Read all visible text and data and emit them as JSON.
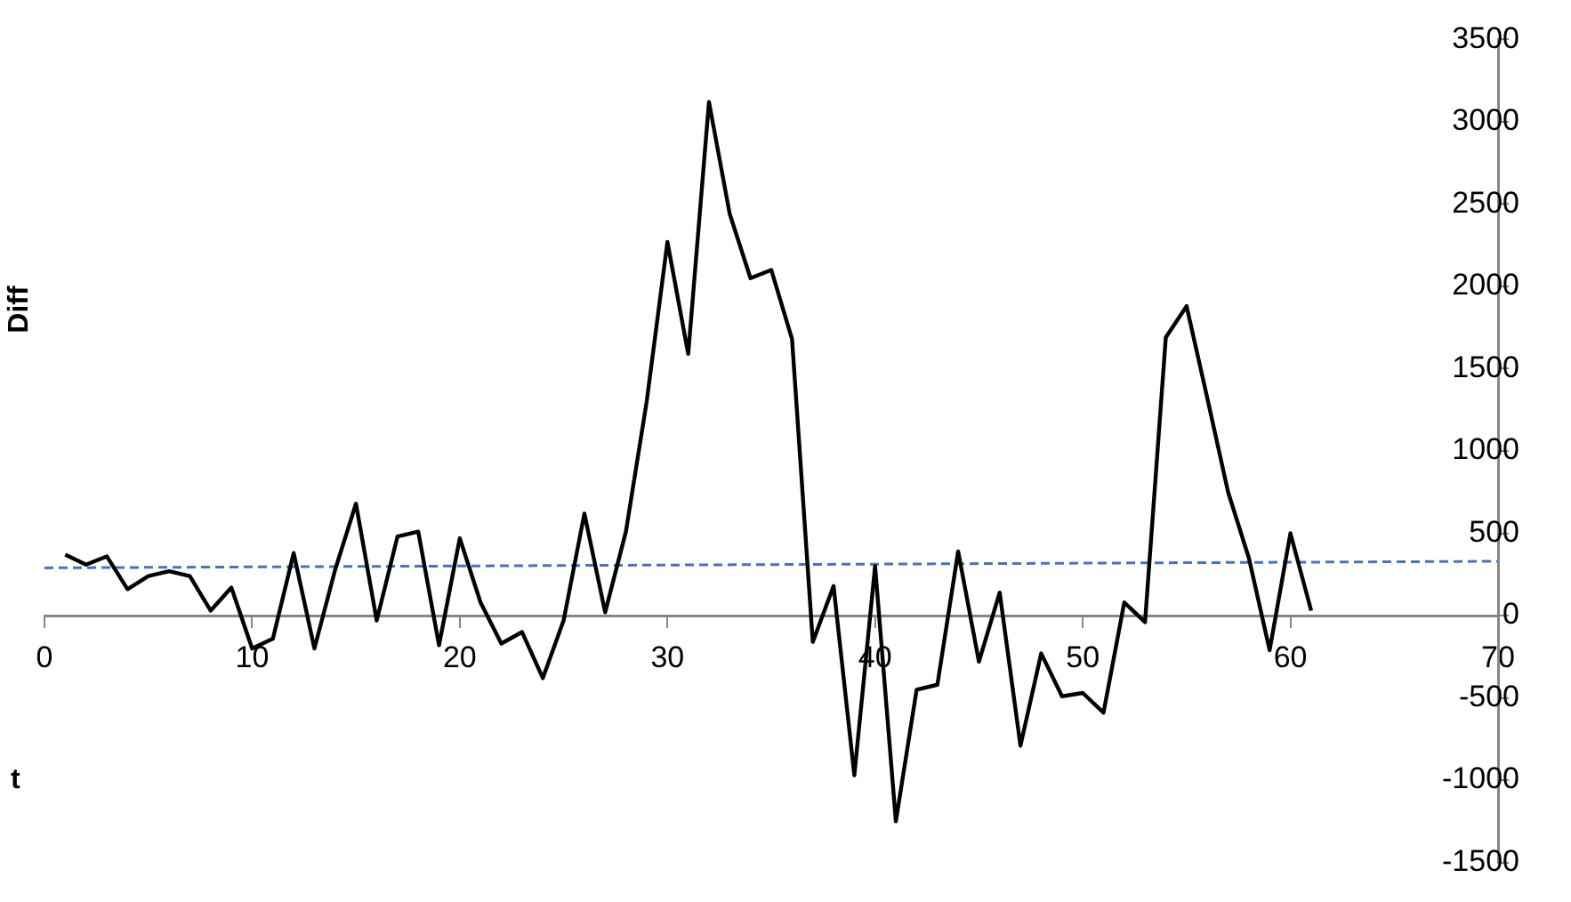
{
  "chart_data": {
    "type": "line",
    "xlabel": "t",
    "ylabel": "Diff",
    "xlim": [
      0,
      70
    ],
    "xticks": [
      0,
      10,
      20,
      30,
      40,
      50,
      60,
      70
    ],
    "ylim": [
      -1500,
      3500
    ],
    "yticks": [
      -1500,
      -1000,
      -500,
      0,
      500,
      1000,
      1500,
      2000,
      2500,
      3000,
      3500
    ],
    "grid": false,
    "legend": false,
    "marker": "none",
    "series": [
      {
        "color": "#000000",
        "line_style": "solid",
        "x": [
          1,
          2,
          3,
          4,
          5,
          6,
          7,
          8,
          9,
          10,
          11,
          12,
          13,
          14,
          15,
          16,
          17,
          18,
          19,
          20,
          21,
          22,
          23,
          24,
          25,
          26,
          27,
          28,
          29,
          30,
          31,
          32,
          33,
          34,
          35,
          36,
          37,
          38,
          39,
          40,
          41,
          42,
          43,
          44,
          45,
          46,
          47,
          48,
          49,
          50,
          51,
          52,
          53,
          54,
          55,
          56,
          57,
          58,
          59,
          60,
          61
        ],
        "values": [
          370,
          310,
          360,
          160,
          240,
          270,
          240,
          30,
          170,
          -200,
          -140,
          380,
          -200,
          280,
          680,
          -30,
          480,
          510,
          -180,
          470,
          80,
          -170,
          -100,
          -380,
          -30,
          620,
          20,
          510,
          1300,
          2270,
          1590,
          3120,
          2440,
          2050,
          2100,
          1680,
          -160,
          180,
          -970,
          300,
          -1250,
          -450,
          -420,
          390,
          -280,
          140,
          -790,
          -230,
          -490,
          -470,
          -590,
          80,
          -40,
          1690,
          1880,
          1320,
          750,
          350,
          -210,
          500,
          30
        ]
      },
      {
        "type": "line",
        "color": "#4472c4",
        "line_style": "dashed",
        "x": [
          0,
          70
        ],
        "values": [
          290,
          330
        ]
      }
    ]
  }
}
